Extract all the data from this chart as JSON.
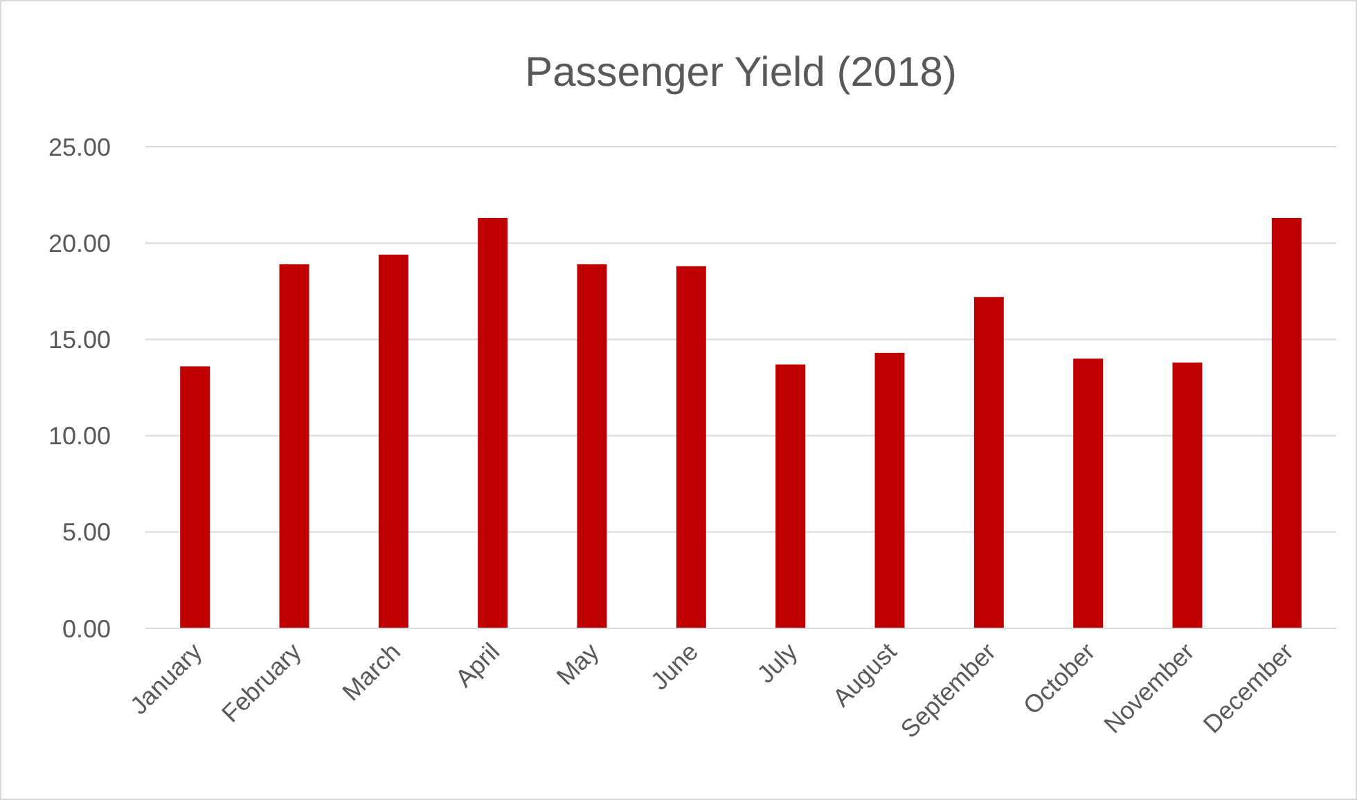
{
  "chart_data": {
    "type": "bar",
    "title": "Passenger Yield (2018)",
    "categories": [
      "January",
      "February",
      "March",
      "April",
      "May",
      "June",
      "July",
      "August",
      "September",
      "October",
      "November",
      "December"
    ],
    "values": [
      13.6,
      18.9,
      19.4,
      21.3,
      18.9,
      18.8,
      13.7,
      14.3,
      17.2,
      14.0,
      13.8,
      21.3
    ],
    "color": "#c00000",
    "ylim": [
      0,
      25
    ],
    "yticks": [
      {
        "value": 0,
        "label": "0.00"
      },
      {
        "value": 5,
        "label": "5.00"
      },
      {
        "value": 10,
        "label": "10.00"
      },
      {
        "value": 15,
        "label": "15.00"
      },
      {
        "value": 20,
        "label": "20.00"
      },
      {
        "value": 25,
        "label": "25.00"
      }
    ],
    "grid": true
  }
}
